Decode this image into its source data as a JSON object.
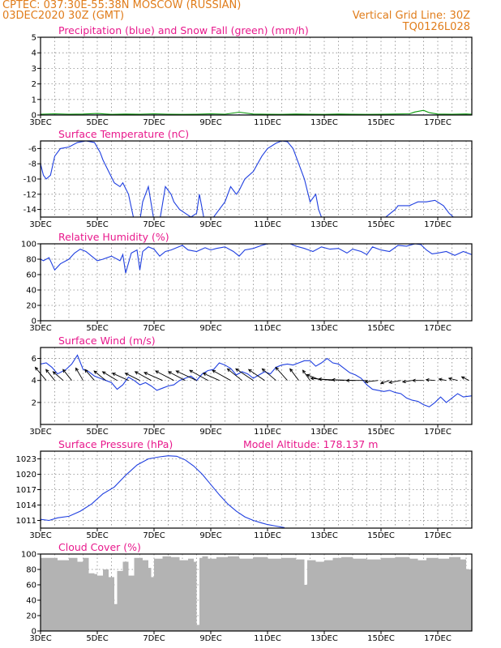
{
  "header": {
    "left_line1": "CPTEC:   037:30E-55:38N   MOSCOW (RUSSIAN)",
    "left_line2": "03DEC2020 30Z (GMT)",
    "right_line1": "Vertical Grid Line: 30Z",
    "right_line2": "TQ0126L028"
  },
  "x_ticks": [
    "3DEC",
    "5DEC",
    "7DEC",
    "9DEC",
    "11DEC",
    "13DEC",
    "15DEC",
    "17DEC"
  ],
  "x_range": [
    3,
    18.2
  ],
  "colors": {
    "title": "#e8198c",
    "header": "#e07c1a",
    "line": "#1f3fe0",
    "snow": "#0a9a0a",
    "cloud": "#b3b3b3",
    "grid": "#888888"
  },
  "chart_data": [
    {
      "id": "precip",
      "type": "line",
      "title": "Precipitation (blue) and Snow Fall (green) (mm/h)",
      "yticks": [
        0,
        1,
        2,
        3,
        4,
        5
      ],
      "ylim": [
        0,
        5
      ],
      "series": [
        {
          "name": "Precipitation",
          "color": "#1f3fe0",
          "x": [
            3,
            18.2
          ],
          "y": [
            0,
            0
          ]
        },
        {
          "name": "Snow Fall",
          "color": "#0a9a0a",
          "x": [
            3,
            3.5,
            4,
            4.5,
            5,
            5.5,
            6,
            6.5,
            7,
            7.5,
            8,
            8.5,
            9,
            9.5,
            10,
            10.5,
            11,
            11.5,
            12,
            12.5,
            13,
            13.5,
            14,
            14.5,
            15,
            15.5,
            16,
            16.2,
            16.5,
            16.7,
            17,
            17.5,
            18,
            18.2
          ],
          "y": [
            0.05,
            0.08,
            0.05,
            0.06,
            0.1,
            0.04,
            0.06,
            0.05,
            0.08,
            0.05,
            0.04,
            0.05,
            0.08,
            0.05,
            0.18,
            0.06,
            0.05,
            0.04,
            0.06,
            0.05,
            0.04,
            0.06,
            0.05,
            0.04,
            0.05,
            0.06,
            0.08,
            0.2,
            0.3,
            0.15,
            0.06,
            0.05,
            0.07,
            0.05
          ]
        }
      ]
    },
    {
      "id": "temp",
      "type": "line",
      "title": "Surface Temperature (nC)",
      "yticks": [
        -14,
        -12,
        -10,
        -8,
        -6
      ],
      "ylim": [
        -15,
        -5
      ],
      "series": [
        {
          "name": "Surface Temperature",
          "color": "#1f3fe0",
          "x": [
            3,
            3.1,
            3.2,
            3.35,
            3.5,
            3.7,
            4,
            4.3,
            4.6,
            4.9,
            5.1,
            5.2,
            5.4,
            5.6,
            5.8,
            5.9,
            6.1,
            6.3,
            6.5,
            6.6,
            6.8,
            7,
            7.2,
            7.4,
            7.6,
            7.7,
            7.9,
            8.1,
            8.3,
            8.5,
            8.6,
            8.8,
            9,
            9.3,
            9.5,
            9.7,
            9.9,
            10,
            10.2,
            10.5,
            10.8,
            11,
            11.3,
            11.5,
            11.7,
            11.9,
            12.1,
            12.3,
            12.5,
            12.7,
            12.8,
            13,
            13.2,
            13.4,
            14,
            14.5,
            15,
            15.5,
            15.6,
            16,
            16.3,
            16.6,
            16.9,
            17.2,
            17.4,
            17.7,
            17.8,
            18.1,
            18.2
          ],
          "y": [
            -8,
            -9.5,
            -10,
            -9.5,
            -7,
            -6,
            -5.8,
            -5.2,
            -5,
            -5.2,
            -6.5,
            -7.5,
            -9,
            -10.5,
            -11,
            -10.5,
            -12,
            -15.5,
            -15.5,
            -13,
            -11,
            -15.5,
            -15.5,
            -11,
            -12,
            -13,
            -14,
            -14.5,
            -15,
            -14.5,
            -12,
            -16,
            -15.5,
            -14,
            -13,
            -11,
            -12,
            -11.5,
            -10,
            -9,
            -7,
            -6,
            -5.3,
            -5,
            -5.1,
            -6,
            -8,
            -10,
            -13,
            -12,
            -14,
            -16,
            -15.5,
            -15.5,
            -15.5,
            -16,
            -15.5,
            -14,
            -13.5,
            -13.5,
            -13,
            -13,
            -12.8,
            -13.5,
            -14.5,
            -15.5,
            -15.5,
            -15,
            -15.5
          ]
        }
      ]
    },
    {
      "id": "rh",
      "type": "line",
      "title": "Relative Humidity (%)",
      "yticks": [
        0,
        20,
        40,
        60,
        80,
        100
      ],
      "ylim": [
        0,
        100
      ],
      "series": [
        {
          "name": "Relative Humidity",
          "color": "#1f3fe0",
          "x": [
            3,
            3.1,
            3.3,
            3.5,
            3.7,
            4,
            4.2,
            4.4,
            4.6,
            4.8,
            5,
            5.2,
            5.5,
            5.8,
            5.9,
            6,
            6.2,
            6.4,
            6.5,
            6.6,
            6.8,
            7,
            7.2,
            7.4,
            7.6,
            7.8,
            8,
            8.2,
            8.5,
            8.8,
            9,
            9.2,
            9.5,
            9.8,
            10,
            10.2,
            10.5,
            10.8,
            11,
            11.2,
            11.5,
            11.8,
            12,
            12.3,
            12.6,
            12.9,
            13.2,
            13.5,
            13.8,
            14,
            14.3,
            14.5,
            14.7,
            15,
            15.3,
            15.6,
            15.9,
            16.2,
            16.4,
            16.6,
            16.8,
            17,
            17.3,
            17.6,
            17.9,
            18.2
          ],
          "y": [
            80,
            78,
            82,
            66,
            74,
            80,
            88,
            93,
            90,
            84,
            78,
            80,
            84,
            78,
            86,
            62,
            88,
            92,
            66,
            90,
            96,
            93,
            84,
            90,
            92,
            95,
            98,
            92,
            90,
            95,
            92,
            94,
            96,
            90,
            84,
            92,
            94,
            98,
            100,
            100,
            100,
            100,
            97,
            94,
            90,
            96,
            93,
            94,
            88,
            93,
            90,
            86,
            96,
            92,
            90,
            98,
            97,
            100,
            99,
            92,
            87,
            88,
            90,
            85,
            90,
            86
          ]
        }
      ]
    },
    {
      "id": "wind",
      "type": "line",
      "title": "Surface Wind (m/s)",
      "yticks": [
        2,
        4,
        6
      ],
      "ylim": [
        0,
        7
      ],
      "series": [
        {
          "name": "Surface Wind",
          "color": "#1f3fe0",
          "x": [
            3,
            3.2,
            3.4,
            3.6,
            3.9,
            4.1,
            4.3,
            4.5,
            4.7,
            4.9,
            5.1,
            5.3,
            5.5,
            5.7,
            5.9,
            6.1,
            6.3,
            6.5,
            6.7,
            6.9,
            7.1,
            7.3,
            7.5,
            7.7,
            7.9,
            8.1,
            8.3,
            8.5,
            8.7,
            8.9,
            9.1,
            9.3,
            9.5,
            9.7,
            9.9,
            10.1,
            10.3,
            10.5,
            10.7,
            10.9,
            11.1,
            11.3,
            11.5,
            11.7,
            11.9,
            12.1,
            12.3,
            12.5,
            12.7,
            12.9,
            13.1,
            13.3,
            13.5,
            13.7,
            13.9,
            14.1,
            14.3,
            14.5,
            14.7,
            14.9,
            15.1,
            15.3,
            15.5,
            15.7,
            15.9,
            16.1,
            16.3,
            16.5,
            16.7,
            16.9,
            17.1,
            17.3,
            17.5,
            17.7,
            17.9,
            18.2
          ],
          "y": [
            5.5,
            5.6,
            5.2,
            4.6,
            5.0,
            5.5,
            6.3,
            5.0,
            4.8,
            4.4,
            4.2,
            4.0,
            3.8,
            3.2,
            3.6,
            4.3,
            4.0,
            3.6,
            3.8,
            3.5,
            3.1,
            3.3,
            3.5,
            3.6,
            4.0,
            4.2,
            4.4,
            4.0,
            4.6,
            4.9,
            5.0,
            5.6,
            5.4,
            5.1,
            4.5,
            4.8,
            4.6,
            4.2,
            4.5,
            4.8,
            4.6,
            5.2,
            5.4,
            5.5,
            5.4,
            5.6,
            5.8,
            5.8,
            5.3,
            5.6,
            6.0,
            5.6,
            5.5,
            5.1,
            4.7,
            4.5,
            4.2,
            3.6,
            3.2,
            3.1,
            3.0,
            3.1,
            2.9,
            2.8,
            2.4,
            2.2,
            2.1,
            1.8,
            1.6,
            2.0,
            2.5,
            2.0,
            2.4,
            2.8,
            2.5,
            2.6
          ]
        }
      ],
      "arrows": {
        "x": [
          3.2,
          3.5,
          3.8,
          4.1,
          4.5,
          4.9,
          5.3,
          5.7,
          6.1,
          6.5,
          6.9,
          7.3,
          7.7,
          8.1,
          8.5,
          8.9,
          9.3,
          9.7,
          10.1,
          10.5,
          10.9,
          11.3,
          11.7,
          12.1,
          12.5,
          12.9,
          13.3,
          13.7,
          14.1,
          14.5,
          14.9,
          15.3,
          15.7,
          16.1,
          16.5,
          16.9,
          17.3,
          17.7,
          18.1
        ],
        "u": [
          -1.5,
          -1.2,
          -1.4,
          -1.2,
          -1.0,
          -1.3,
          -1.6,
          -2.0,
          -2.2,
          -2.0,
          -2.2,
          -2.5,
          -2.5,
          -2.3,
          -2.8,
          -2.5,
          -2.2,
          -2.5,
          -2.0,
          -2.4,
          -2.2,
          -1.9,
          -1.6,
          -1.2,
          -1.0,
          -2.0,
          -3.0,
          -3.5,
          -3.2,
          -2.8,
          -1.8,
          -1.2,
          -1.6,
          -1.3,
          -1.5,
          -1.2,
          -1.0,
          -1.2,
          -1.0
        ],
        "v": [
          1.8,
          1.5,
          1.2,
          1.5,
          1.7,
          1.5,
          1.3,
          1.2,
          1.0,
          1.0,
          1.2,
          1.1,
          1.3,
          1.2,
          1.3,
          1.4,
          1.0,
          1.4,
          1.6,
          1.6,
          1.5,
          1.6,
          1.8,
          1.6,
          1.4,
          0.8,
          0.3,
          0.2,
          0.1,
          0.0,
          -0.2,
          -0.4,
          -0.3,
          -0.2,
          0.0,
          0.1,
          0.2,
          0.3,
          0.5
        ]
      }
    },
    {
      "id": "pressure",
      "type": "line",
      "title": "Surface Pressure (hPa)",
      "subtitle": "Model Altitude: 178.137 m",
      "yticks": [
        1011,
        1014,
        1017,
        1020,
        1023
      ],
      "ylim": [
        1009.5,
        1024.5
      ],
      "series": [
        {
          "name": "Surface Pressure",
          "color": "#1f3fe0",
          "x": [
            3,
            3.3,
            3.6,
            4,
            4.4,
            4.8,
            5.2,
            5.6,
            6,
            6.4,
            6.8,
            7.2,
            7.5,
            7.8,
            8.1,
            8.4,
            8.7,
            9,
            9.3,
            9.6,
            9.9,
            10.2,
            10.5,
            10.8,
            11,
            11.3,
            11.6
          ],
          "y": [
            1011.2,
            1011.0,
            1011.5,
            1011.8,
            1012.8,
            1014.2,
            1016.2,
            1017.5,
            1019.8,
            1021.8,
            1023.0,
            1023.4,
            1023.6,
            1023.5,
            1022.8,
            1021.6,
            1020.0,
            1018.0,
            1016.0,
            1014.2,
            1012.8,
            1011.7,
            1011.0,
            1010.5,
            1010.2,
            1009.9,
            1009.6
          ]
        }
      ]
    },
    {
      "id": "cloud",
      "type": "area",
      "title": "Cloud Cover (%)",
      "yticks": [
        0,
        20,
        40,
        60,
        80,
        100
      ],
      "ylim": [
        0,
        100
      ],
      "series": [
        {
          "name": "Cloud Cover",
          "color": "#b3b3b3",
          "x": [
            3,
            3.3,
            3.6,
            4,
            4.3,
            4.5,
            4.7,
            4.9,
            5,
            5.2,
            5.4,
            5.6,
            5.7,
            5.9,
            6.1,
            6.3,
            6.6,
            6.8,
            6.9,
            7,
            7.3,
            7.6,
            7.9,
            8.2,
            8.4,
            8.5,
            8.6,
            8.7,
            8.9,
            9.2,
            9.6,
            10,
            10.5,
            11,
            11.5,
            12,
            12.3,
            12.4,
            12.7,
            13,
            13.3,
            13.6,
            14,
            14.5,
            15,
            15.5,
            16,
            16.3,
            16.6,
            17,
            17.4,
            17.8,
            18,
            18.2
          ],
          "y": [
            95,
            95,
            92,
            95,
            90,
            95,
            75,
            74,
            72,
            80,
            70,
            35,
            78,
            90,
            72,
            95,
            92,
            82,
            70,
            94,
            97,
            96,
            92,
            94,
            90,
            8,
            95,
            97,
            94,
            96,
            97,
            94,
            96,
            94,
            95,
            93,
            60,
            92,
            90,
            92,
            95,
            96,
            94,
            93,
            95,
            96,
            94,
            92,
            95,
            94,
            96,
            93,
            80,
            98
          ]
        }
      ]
    }
  ]
}
